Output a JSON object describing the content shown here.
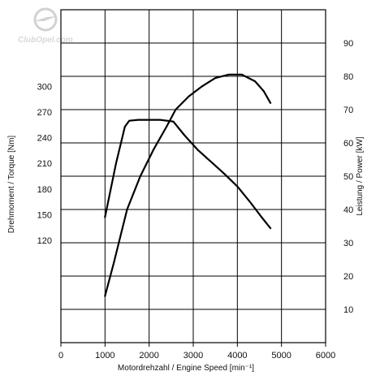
{
  "watermark": {
    "text": "ClubOpel.com"
  },
  "chart_data": {
    "type": "line",
    "title": "",
    "xlabel": "Motordrehzahl / Engine Speed [min⁻¹]",
    "ylabel_left": "Drehmoment / Torque [Nm]",
    "ylabel_right": "Leistung / Power [kW]",
    "xlim": [
      0,
      6000
    ],
    "x_ticks": [
      0,
      1000,
      2000,
      3000,
      4000,
      5000,
      6000
    ],
    "y_left_range": [
      0,
      390
    ],
    "y_left_ticks": [
      120,
      150,
      180,
      210,
      240,
      270,
      300
    ],
    "y_right_range": [
      0,
      100
    ],
    "y_right_ticks": [
      10,
      20,
      30,
      40,
      50,
      60,
      70,
      80,
      90
    ],
    "grid": true,
    "grid_color": "#000000",
    "series": [
      {
        "axis": "left",
        "x": [
          1000,
          1250,
          1450,
          1550,
          1750,
          2000,
          2250,
          2550,
          2800,
          3100,
          3400,
          3700,
          4000,
          4300,
          4550,
          4750
        ],
        "y": [
          147,
          210,
          253,
          260,
          261,
          261,
          261,
          259,
          243,
          226,
          212,
          198,
          183,
          164,
          147,
          134
        ],
        "color": "#000000"
      },
      {
        "axis": "right",
        "x": [
          1000,
          1200,
          1500,
          1800,
          2100,
          2400,
          2600,
          2900,
          3200,
          3500,
          3800,
          4100,
          4400,
          4600,
          4750
        ],
        "y": [
          14,
          24,
          40,
          50,
          58,
          65,
          70,
          74,
          77,
          79.5,
          80.5,
          80.5,
          78.5,
          75.5,
          72
        ],
        "color": "#000000"
      }
    ]
  }
}
